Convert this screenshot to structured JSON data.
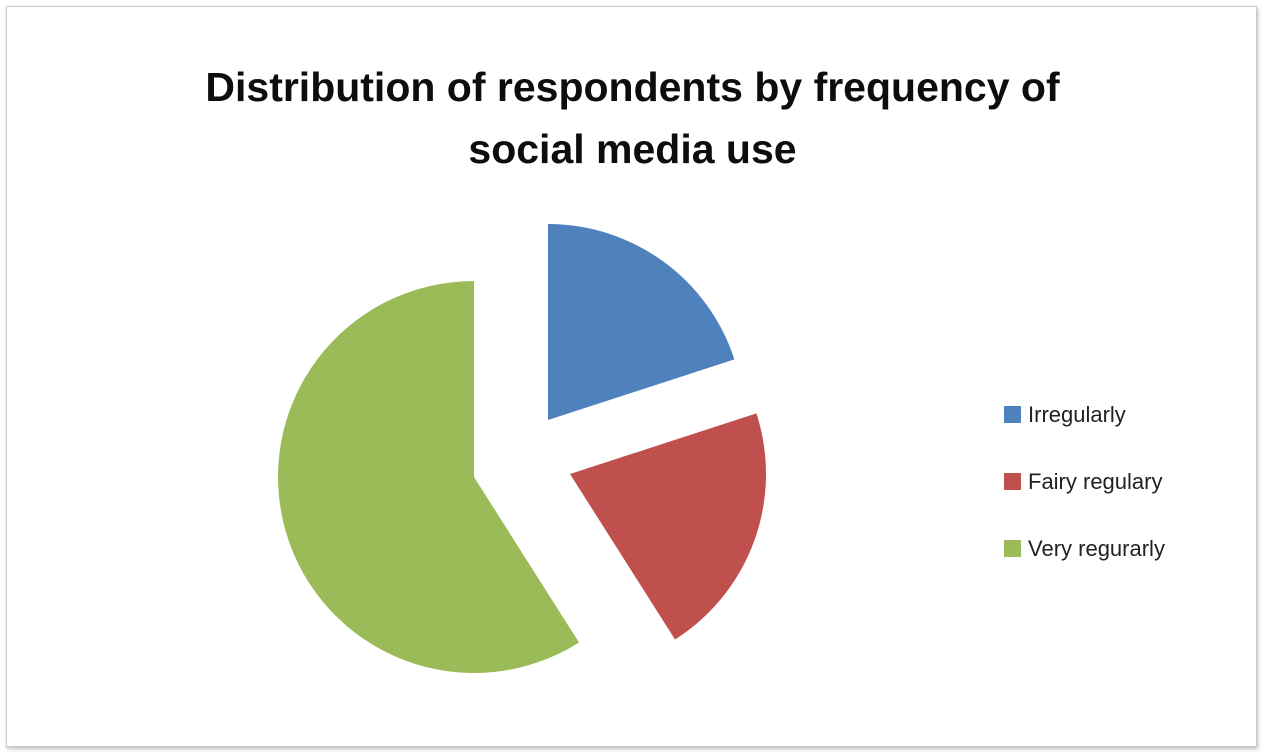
{
  "chart_data": {
    "type": "pie",
    "title_lines": [
      "Distribution of respondents by frequency of",
      "social media use"
    ],
    "exploded": true,
    "legend_position": "right",
    "start_angle_deg": 0,
    "direction": "clockwise",
    "slices": [
      {
        "label": "Irregularly",
        "value": 20,
        "color": "#4f81bd"
      },
      {
        "label": "Fairy regulary",
        "value": 21,
        "color": "#c0504d"
      },
      {
        "label": "Very regurarly",
        "value": 59,
        "color": "#9bbb59"
      }
    ]
  }
}
